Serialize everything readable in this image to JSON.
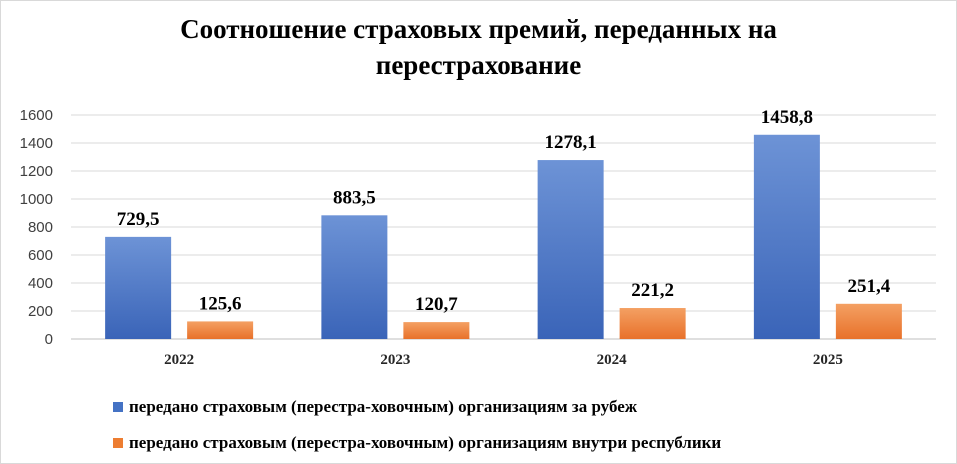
{
  "chart_data": {
    "type": "bar",
    "title_line1": "Соотношение страховых премий, переданных на",
    "title_line2": "перестрахование",
    "categories": [
      "2022",
      "2023",
      "2024",
      "2025"
    ],
    "series": [
      {
        "name": "передано страховым (перестра-ховочным) организациям за рубеж",
        "values": [
          729.5,
          883.5,
          1278.1,
          1458.8
        ],
        "labels": [
          "729,5",
          "883,5",
          "1278,1",
          "1458,8"
        ],
        "color": "#4472C4"
      },
      {
        "name": "передано страховым (перестра-ховочным) организациям внутри республики",
        "values": [
          125.6,
          120.7,
          221.2,
          251.4
        ],
        "labels": [
          "125,6",
          "120,7",
          "221,2",
          "251,4"
        ],
        "color": "#ED7D31"
      }
    ],
    "y_ticks": [
      "0",
      "200",
      "400",
      "600",
      "800",
      "1000",
      "1200",
      "1400",
      "1600"
    ],
    "ylim": [
      0,
      1600
    ],
    "grid": true,
    "legend_position": "bottom"
  }
}
